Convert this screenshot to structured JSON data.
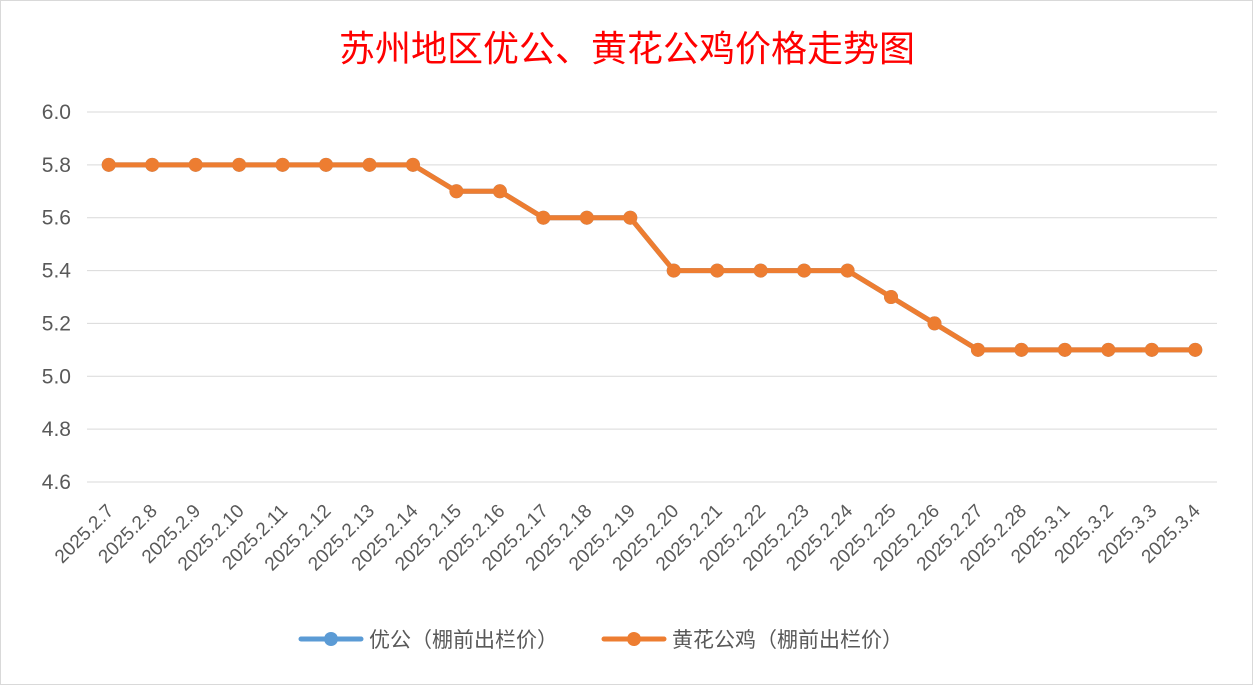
{
  "chart_data": {
    "type": "line",
    "title": "苏州地区优公、黄花公鸡价格走势图",
    "categories": [
      "2025.2.7",
      "2025.2.8",
      "2025.2.9",
      "2025.2.10",
      "2025.2.11",
      "2025.2.12",
      "2025.2.13",
      "2025.2.14",
      "2025.2.15",
      "2025.2.16",
      "2025.2.17",
      "2025.2.18",
      "2025.2.19",
      "2025.2.20",
      "2025.2.21",
      "2025.2.22",
      "2025.2.23",
      "2025.2.24",
      "2025.2.25",
      "2025.2.26",
      "2025.2.27",
      "2025.2.28",
      "2025.3.1",
      "2025.3.2",
      "2025.3.3",
      "2025.3.4"
    ],
    "series": [
      {
        "name": "优公（棚前出栏价）",
        "color": "#5b9bd5",
        "values": [
          5.8,
          5.8,
          5.8,
          5.8,
          5.8,
          5.8,
          5.8,
          5.8,
          5.7,
          5.7,
          5.6,
          5.6,
          5.6,
          5.4,
          5.4,
          5.4,
          5.4,
          5.4,
          5.3,
          5.2,
          5.1,
          5.1,
          5.1,
          5.1,
          5.1,
          5.1
        ]
      },
      {
        "name": "黄花公鸡（棚前出栏价）",
        "color": "#ed7d31",
        "values": [
          5.8,
          5.8,
          5.8,
          5.8,
          5.8,
          5.8,
          5.8,
          5.8,
          5.7,
          5.7,
          5.6,
          5.6,
          5.6,
          5.4,
          5.4,
          5.4,
          5.4,
          5.4,
          5.3,
          5.2,
          5.1,
          5.1,
          5.1,
          5.1,
          5.1,
          5.1
        ]
      }
    ],
    "ylim": [
      4.6,
      6.0
    ],
    "yticks": [
      "6.0",
      "5.8",
      "5.6",
      "5.4",
      "5.2",
      "5.0",
      "4.8",
      "4.6"
    ],
    "xlabel": "",
    "ylabel": "",
    "grid": true,
    "legend": "bottom"
  }
}
